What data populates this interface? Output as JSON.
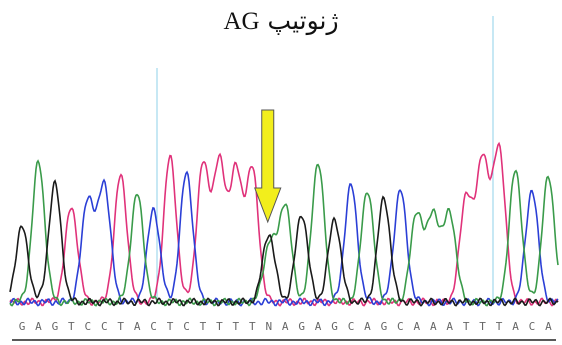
{
  "title": {
    "persian": "ژنوتیپ",
    "genotype": "AG"
  },
  "sequence": [
    "G",
    "A",
    "G",
    "T",
    "C",
    "C",
    "T",
    "A",
    "C",
    "T",
    "C",
    "T",
    "T",
    "T",
    "T",
    "N",
    "A",
    "G",
    "A",
    "G",
    "C",
    "A",
    "G",
    "C",
    "A",
    "A",
    "A",
    "T",
    "T",
    "T",
    "A",
    "C",
    "A"
  ],
  "arrow_base_index": 15,
  "colors": {
    "A": "#3a9b4a",
    "C": "#2b3fd6",
    "G": "#1a1a1a",
    "T": "#e0327a",
    "arrow_fill": "#f2ee1c",
    "arrow_stroke": "#555555",
    "guide": "#8fd0e8"
  }
}
